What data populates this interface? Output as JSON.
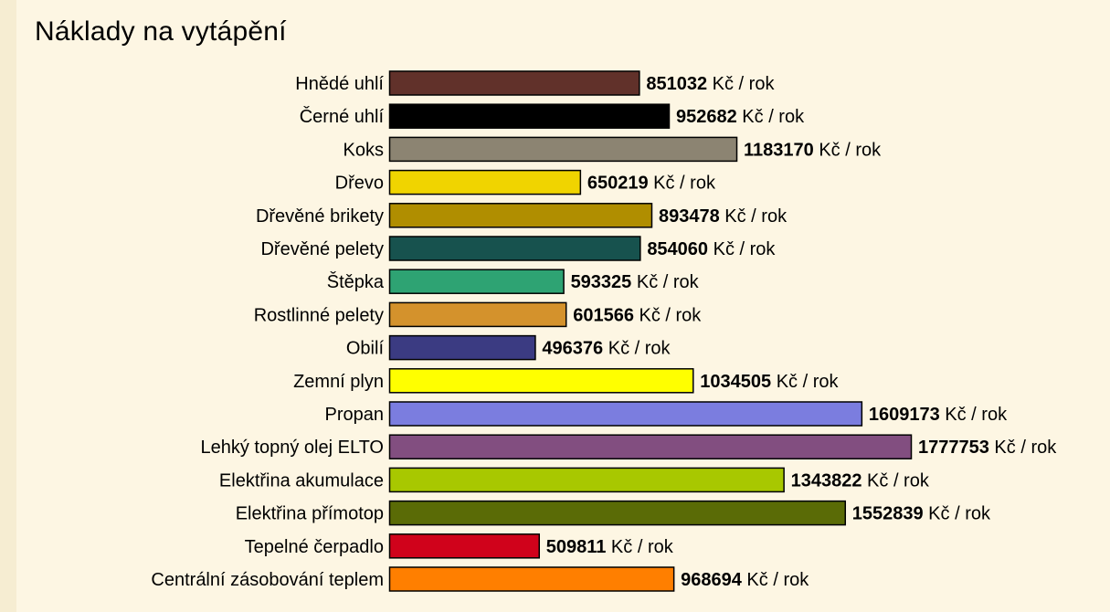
{
  "chart_data": {
    "type": "bar",
    "orientation": "horizontal",
    "title": "Náklady na vytápění",
    "xlabel": "",
    "ylabel": "",
    "unit_suffix": "Kč / rok",
    "grid": false,
    "legend": "none",
    "categories": [
      "Hnědé uhlí",
      "Černé uhlí",
      "Koks",
      "Dřevo",
      "Dřevěné brikety",
      "Dřevěné pelety",
      "Štěpka",
      "Rostlinné pelety",
      "Obilí",
      "Zemní plyn",
      "Propan",
      "Lehký topný olej ELTO",
      "Elektřina akumulace",
      "Elektřina přímotop",
      "Tepelné čerpadlo",
      "Centrální zásobování teplem"
    ],
    "values": [
      851032,
      952682,
      1183170,
      650219,
      893478,
      854060,
      593325,
      601566,
      496376,
      1034505,
      1609173,
      1777753,
      1343822,
      1552839,
      509811,
      968694
    ],
    "colors": [
      "#61312a",
      "#000000",
      "#8c8472",
      "#f0d400",
      "#b08e00",
      "#17524e",
      "#2ea373",
      "#d4922c",
      "#3b3b82",
      "#ffff00",
      "#7b7ddf",
      "#824e80",
      "#a8c800",
      "#5a6b06",
      "#d0021b",
      "#ff7f00"
    ]
  }
}
